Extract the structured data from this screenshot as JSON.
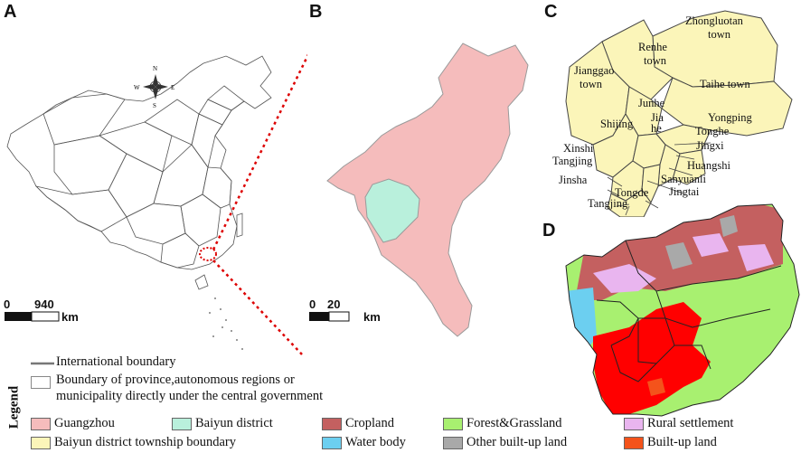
{
  "panels": {
    "a": "A",
    "b": "B",
    "c": "C",
    "d": "D"
  },
  "scale_a": {
    "zero": "0",
    "max": "940",
    "unit": "km"
  },
  "scale_b": {
    "zero": "0",
    "max": "20",
    "unit": "km"
  },
  "compass": {
    "n": "N",
    "s": "S",
    "e": "E",
    "w": "W"
  },
  "towns": {
    "zhongluotan": "Zhongluotan",
    "zhongluotan2": "town",
    "renhe": "Renhe",
    "renhe2": "town",
    "jianggao": "Jianggao",
    "jianggao2": "town",
    "taihe": "Taihe town",
    "junhe": "Junhe",
    "jiahe": "Jia",
    "jiahe2": "he",
    "shijing": "Shijing",
    "yongping": "Yongping",
    "tonghe": "Tonghe",
    "jingxi": "Jingxi",
    "xinshi": "Xinshi",
    "tangjing1": "Tangjing",
    "huangshi": "Huangshi",
    "jinsha": "Jinsha",
    "sanyuanli": "Sanyuanli",
    "jingtai": "Jingtai",
    "tongde": "Tongde",
    "tangjing2": "Tangjing"
  },
  "legend": {
    "title": "Legend",
    "international_boundary": "International boundary",
    "province_boundary_1": "Boundary of province,autonomous regions or",
    "province_boundary_2": "municipality directly under  the central government",
    "items": [
      {
        "label": "Guangzhou",
        "color": "#f5bcbc"
      },
      {
        "label": "Baiyun district",
        "color": "#b9f0dc"
      },
      {
        "label": "Cropland",
        "color": "#c46060"
      },
      {
        "label": "Forest&Grassland",
        "color": "#a8f070"
      },
      {
        "label": "Rural settlement",
        "color": "#e9b5ef"
      },
      {
        "label": "Baiyun district township boundary",
        "color": "#fbf5b9"
      },
      {
        "label": "Water body",
        "color": "#6ccff0"
      },
      {
        "label": "Other built-up land",
        "color": "#a9a9a9"
      },
      {
        "label": "Built-up land",
        "color": "#f4531b"
      }
    ]
  }
}
